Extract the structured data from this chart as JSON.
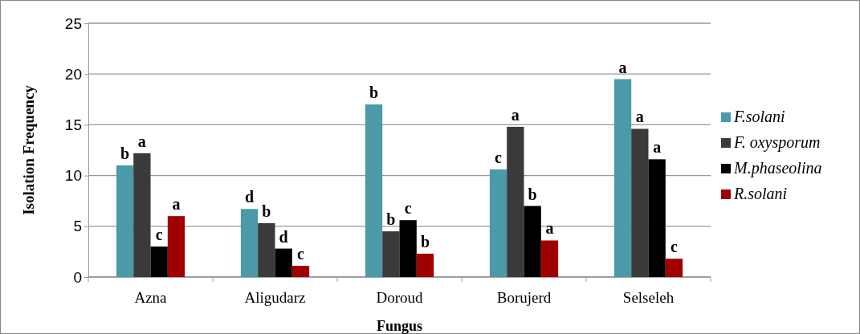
{
  "chart_data": {
    "type": "bar",
    "xlabel": "Fungus",
    "ylabel": "Isolation Frequency",
    "categories": [
      "Azna",
      "Aligudarz",
      "Doroud",
      "Borujerd",
      "Selseleh"
    ],
    "series": [
      {
        "name": "F.solani",
        "color": "#4a9aaa",
        "values": [
          11.0,
          6.7,
          17.0,
          10.6,
          19.5
        ],
        "value_labels": [
          "b",
          "d",
          "b",
          "c",
          "a"
        ]
      },
      {
        "name": "F. oxysporum",
        "color": "#3a3a3a",
        "values": [
          12.2,
          5.3,
          4.5,
          14.8,
          14.6
        ],
        "value_labels": [
          "a",
          "b",
          "b",
          "a",
          "a"
        ]
      },
      {
        "name": "M.phaseolina",
        "color": "#000000",
        "values": [
          3.0,
          2.8,
          5.6,
          7.0,
          11.6
        ],
        "value_labels": [
          "c",
          "d",
          "c",
          "b",
          "a"
        ]
      },
      {
        "name": "R.solani",
        "color": "#a00000",
        "values": [
          6.0,
          1.1,
          2.3,
          3.6,
          1.8
        ],
        "value_labels": [
          "a",
          "c",
          "b",
          "a",
          "c"
        ]
      }
    ],
    "ylim": [
      0,
      25
    ],
    "yticks": [
      0,
      5,
      10,
      15,
      20,
      25
    ],
    "grid": "y",
    "legend": "right"
  }
}
